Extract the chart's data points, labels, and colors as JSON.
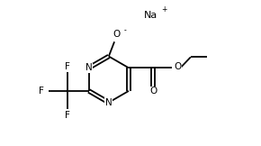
{
  "bg_color": "#ffffff",
  "line_color": "#000000",
  "text_color": "#000000",
  "fig_width": 2.9,
  "fig_height": 1.62,
  "dpi": 100,
  "linewidth": 1.3,
  "fontsize": 7.5,
  "small_fontsize": 5.5,
  "na_label": "Na",
  "na_sup": "+",
  "o_minus_label": "O",
  "o_minus_sup": "-",
  "n_label": "N",
  "o_label": "O",
  "f_label": "F",
  "xlim": [
    0,
    10
  ],
  "ylim": [
    0,
    5.6
  ]
}
